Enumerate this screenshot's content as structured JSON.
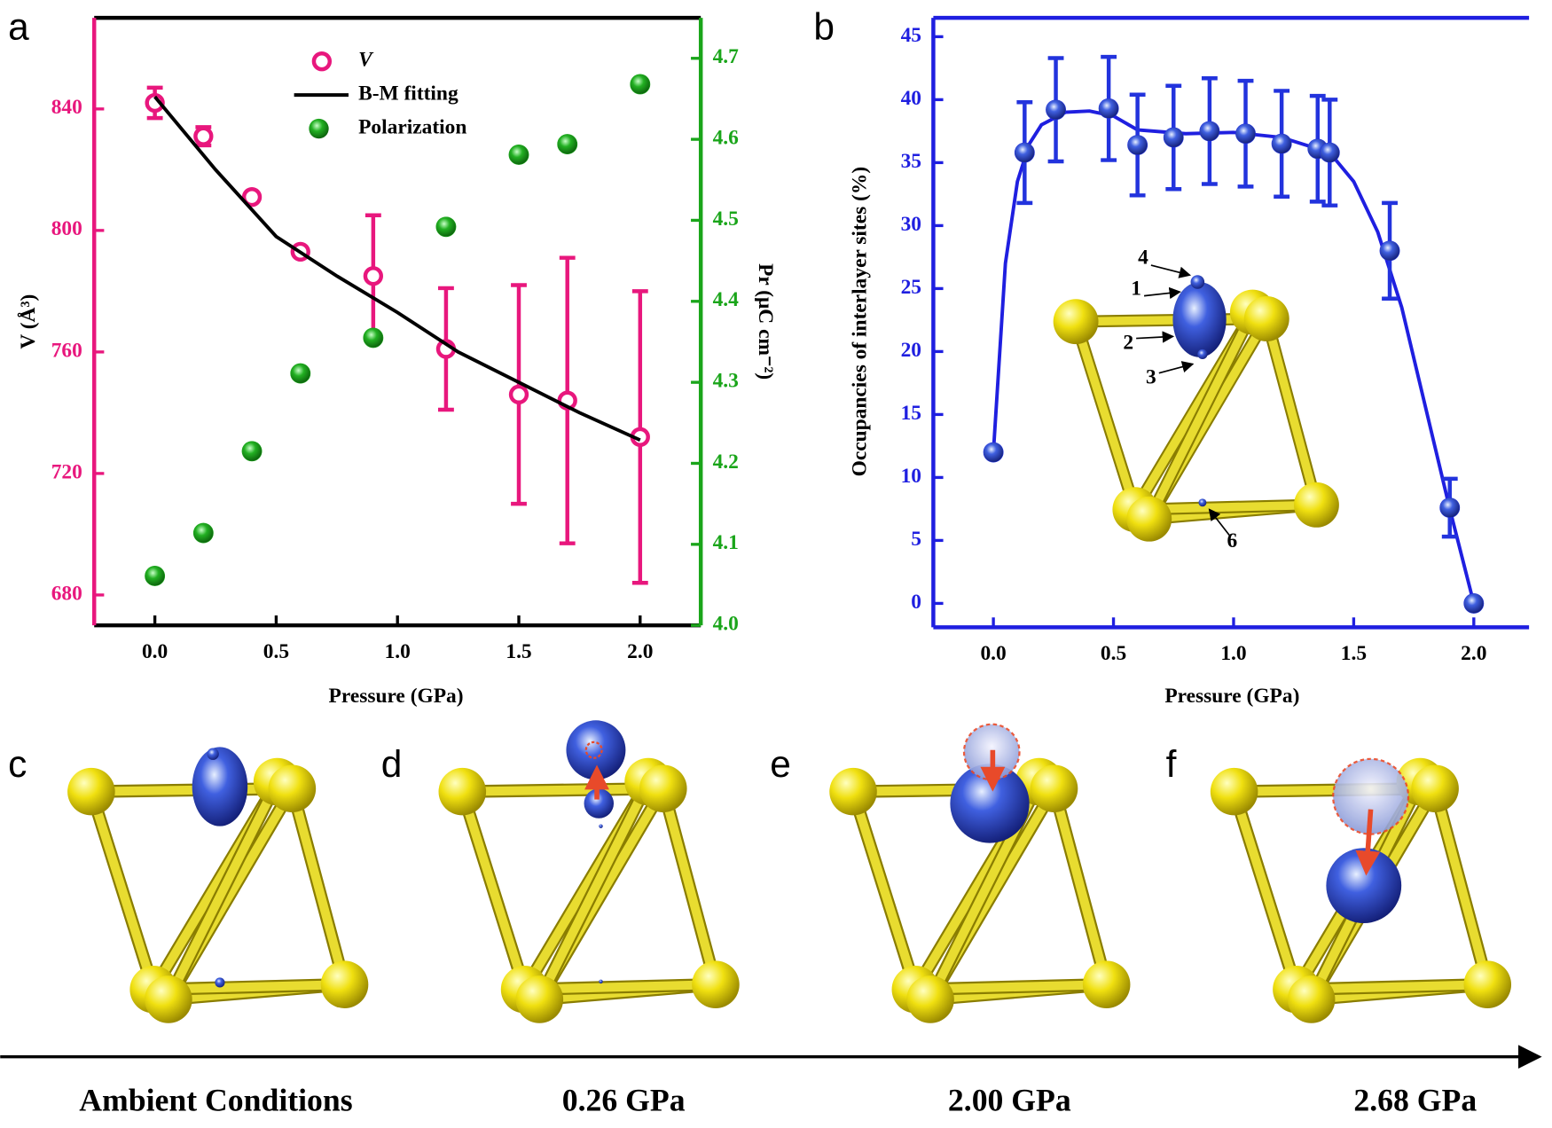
{
  "chart_data": [
    {
      "type": "scatter",
      "xlabel": "Pressure (GPa)",
      "ylabel": "V (Å³)",
      "y2label": "Pr (μC cm⁻²)",
      "xlim": [
        -0.25,
        2.25
      ],
      "ylim": [
        670,
        870
      ],
      "y2lim": [
        4.0,
        4.75
      ],
      "xticks": [
        {
          "value": 0,
          "label": "0.0"
        },
        0.5,
        {
          "value": 1,
          "label": "1.0"
        },
        1.5,
        {
          "value": 2,
          "label": "2.0"
        }
      ],
      "yticks": [
        680,
        720,
        760,
        800,
        840
      ],
      "y2ticks": [
        {
          "value": 4,
          "label": "4.0"
        },
        4.1,
        4.2,
        4.3,
        4.4,
        4.5,
        4.6,
        4.7
      ],
      "axis_colors": {
        "x": "#000000",
        "y": "#e8177d",
        "y2": "#1aa51a"
      },
      "legend": "top",
      "series": [
        {
          "name": "V",
          "style": "open-circle",
          "color": "#e8177d",
          "x": [
            0,
            0.2,
            0.4,
            0.6,
            0.9,
            1.2,
            1.5,
            1.7,
            2.0
          ],
          "values": [
            842,
            831,
            811,
            793,
            785,
            761,
            746,
            744,
            732
          ],
          "errors": [
            5,
            3,
            null,
            null,
            20,
            20,
            36,
            47,
            48
          ]
        },
        {
          "name": "B-M fitting",
          "style": "line",
          "color": "#000000",
          "x": [
            0,
            0.25,
            0.5,
            0.75,
            1.0,
            1.25,
            1.5,
            1.75,
            2.0
          ],
          "values": [
            844,
            820,
            798,
            785,
            773,
            760,
            750,
            740,
            731
          ]
        },
        {
          "name": "Polarization",
          "style": "filled-circle",
          "color": "#1aa51a",
          "axis": "y2",
          "x": [
            0,
            0.2,
            0.4,
            0.6,
            0.9,
            1.2,
            1.5,
            1.7,
            2.0
          ],
          "values": [
            4.061,
            4.114,
            4.215,
            4.311,
            4.355,
            4.492,
            4.581,
            4.594,
            4.668
          ]
        }
      ]
    },
    {
      "type": "scatter",
      "xlabel": "Pressure (GPa)",
      "ylabel": "Occupancies of interlayer sites (%)",
      "xlim": [
        -0.25,
        2.23
      ],
      "ylim": [
        -1.9,
        46.5
      ],
      "xticks": [
        {
          "value": 0,
          "label": "0.0"
        },
        0.5,
        {
          "value": 1,
          "label": "1.0"
        },
        1.5,
        {
          "value": 2,
          "label": "2.0"
        }
      ],
      "yticks": [
        0,
        5,
        10,
        15,
        20,
        25,
        30,
        35,
        40,
        45
      ],
      "axis_colors": {
        "x": "#1f1fe0",
        "y": "#1f1fe0"
      },
      "series": [
        {
          "style": "line",
          "color": "#1f1fe0",
          "x": [
            0,
            0.05,
            0.1,
            0.15,
            0.2,
            0.3,
            0.4,
            0.5,
            0.6,
            0.8,
            1.0,
            1.2,
            1.4,
            1.5,
            1.6,
            1.7,
            1.8,
            1.9,
            2.0
          ],
          "values": [
            12,
            27,
            33.5,
            36.5,
            38,
            39,
            39.1,
            38.7,
            37.6,
            37.3,
            37.4,
            37,
            35.8,
            33.5,
            29.5,
            23.5,
            15.5,
            7.5,
            0
          ]
        },
        {
          "style": "sphere",
          "color": "#2233dd",
          "x": [
            0,
            0.13,
            0.26,
            0.48,
            0.6,
            0.75,
            0.9,
            1.05,
            1.2,
            1.35,
            1.4,
            1.65,
            1.9,
            2.0
          ],
          "values": [
            12,
            35.8,
            39.2,
            39.3,
            36.4,
            37,
            37.5,
            37.3,
            36.5,
            36.1,
            35.8,
            28,
            7.6,
            0
          ],
          "errors": [
            null,
            4,
            4.1,
            4.1,
            4,
            4.1,
            4.2,
            4.2,
            4.2,
            4.2,
            4.2,
            3.8,
            2.3,
            null
          ]
        }
      ]
    }
  ],
  "figure": {
    "panels": [
      "a",
      "b",
      "c",
      "d",
      "e",
      "f"
    ],
    "inset_labels": [
      "4",
      "1",
      "2",
      "3",
      "6"
    ],
    "stages": [
      "Ambient Conditions",
      "0.26 GPa",
      "2.00 GPa",
      "2.68 GPa"
    ]
  }
}
